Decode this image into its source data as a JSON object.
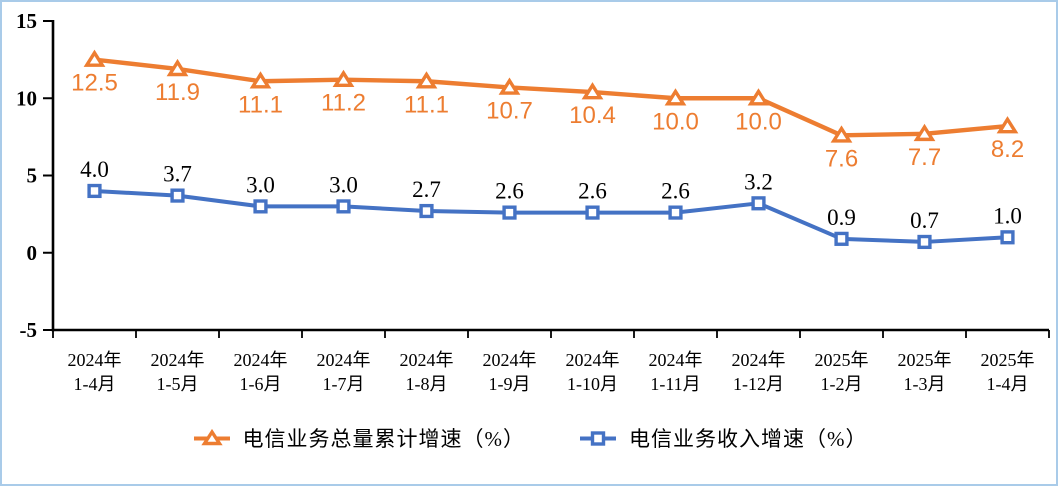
{
  "frame": {
    "border_color": "#A9CBE9",
    "background_color": "#FFFFFF"
  },
  "chart_data": {
    "type": "line",
    "categories": [
      {
        "line1": "2024年",
        "line2": "1-4月"
      },
      {
        "line1": "2024年",
        "line2": "1-5月"
      },
      {
        "line1": "2024年",
        "line2": "1-6月"
      },
      {
        "line1": "2024年",
        "line2": "1-7月"
      },
      {
        "line1": "2024年",
        "line2": "1-8月"
      },
      {
        "line1": "2024年",
        "line2": "1-9月"
      },
      {
        "line1": "2024年",
        "line2": "1-10月"
      },
      {
        "line1": "2024年",
        "line2": "1-11月"
      },
      {
        "line1": "2024年",
        "line2": "1-12月"
      },
      {
        "line1": "2025年",
        "line2": "1-2月"
      },
      {
        "line1": "2025年",
        "line2": "1-3月"
      },
      {
        "line1": "2025年",
        "line2": "1-4月"
      }
    ],
    "series": [
      {
        "name": "电信业务总量累计增速（%）",
        "values": [
          12.5,
          11.9,
          11.1,
          11.2,
          11.1,
          10.7,
          10.4,
          10.0,
          10.0,
          7.6,
          7.7,
          8.2
        ],
        "color": "#ED7D31",
        "marker": "triangle",
        "label_color": "#ED7D31",
        "label_side": "below"
      },
      {
        "name": "电信业务收入增速（%）",
        "values": [
          4.0,
          3.7,
          3.0,
          3.0,
          2.7,
          2.6,
          2.6,
          2.6,
          3.2,
          0.9,
          0.7,
          1.0
        ],
        "color": "#4472C4",
        "marker": "square",
        "label_color": "#000000",
        "label_side": "above"
      }
    ],
    "ylim": [
      -5,
      15
    ],
    "yticks": [
      15,
      10,
      5,
      0,
      -5
    ],
    "grid": false,
    "legend_position": "bottom",
    "axis_color": "#000000",
    "label_decimals": 1
  }
}
